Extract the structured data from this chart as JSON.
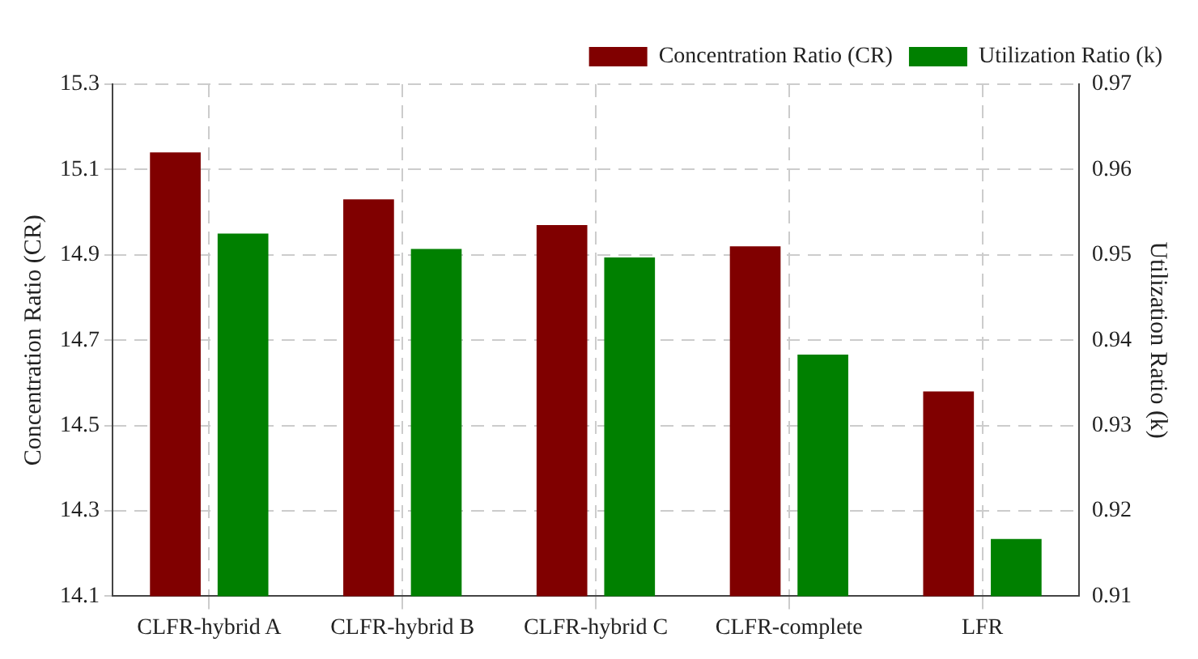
{
  "chart_data": {
    "type": "bar",
    "categories": [
      "CLFR-hybrid A",
      "CLFR-hybrid B",
      "CLFR-hybrid C",
      "CLFR-complete",
      "LFR"
    ],
    "ylabel": "Concentration Ratio (CR)",
    "y2label": "Utilization Ratio (k)",
    "series": [
      {
        "name": "Concentration Ratio (CR)",
        "color": "#800000",
        "values": [
          15.14,
          15.03,
          14.97,
          14.92,
          14.58
        ]
      },
      {
        "name": "Utilization Ratio (k)",
        "color": "#008000",
        "axis": "y2",
        "values": [
          0.9525,
          0.9507,
          0.9497,
          0.9383,
          0.9167
        ]
      }
    ],
    "ylim": [
      14.1,
      15.3
    ],
    "yticks": [
      {
        "value": 14.1,
        "label": "14.1"
      },
      {
        "value": 14.3,
        "label": "14.3"
      },
      {
        "value": 14.5,
        "label": "14.5"
      },
      {
        "value": 14.7,
        "label": "14.7"
      },
      {
        "value": 14.9,
        "label": "14.9"
      },
      {
        "value": 15.1,
        "label": "15.1"
      },
      {
        "value": 15.3,
        "label": "15.3"
      }
    ],
    "y2lim": [
      0.91,
      0.97
    ],
    "y2ticks": [
      0.91,
      0.92,
      0.93,
      0.94,
      0.95,
      0.96,
      0.97
    ],
    "grid": true,
    "legend": "top right"
  }
}
